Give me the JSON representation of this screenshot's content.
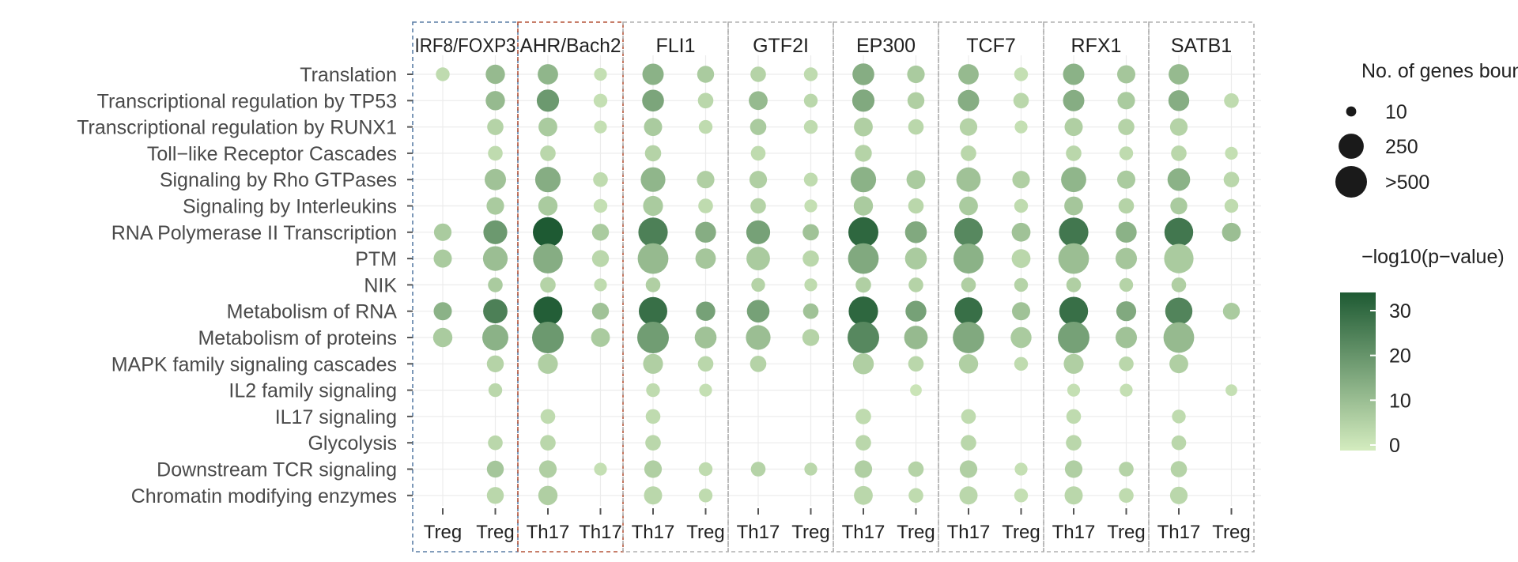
{
  "chart_data": {
    "type": "scatter",
    "categories": [
      "Translation",
      "Transcriptional regulation by TP53",
      "Transcriptional regulation by RUNX1",
      "Toll−like Receptor Cascades",
      "Signaling by Rho GTPases",
      "Signaling by Interleukins",
      "RNA Polymerase II Transcription",
      "PTM",
      "NIK",
      "Metabolism of RNA",
      "Metabolism of proteins",
      "MAPK family signaling cascades",
      "IL2 family signaling",
      "IL17 signaling",
      "Glycolysis",
      "Downstream TCR signaling",
      "Chromatin modifying enzymes"
    ],
    "groups": [
      {
        "label": "IRF8/FOXP3",
        "frame_color": "#5b7fa6"
      },
      {
        "label": "AHR/Bach2",
        "frame_color": "#b5553a"
      },
      {
        "label": "FLI1",
        "frame_color": "#b0b0b0"
      },
      {
        "label": "GTF2I",
        "frame_color": "#b0b0b0"
      },
      {
        "label": "EP300",
        "frame_color": "#b0b0b0"
      },
      {
        "label": "TCF7",
        "frame_color": "#b0b0b0"
      },
      {
        "label": "RFX1",
        "frame_color": "#b0b0b0"
      },
      {
        "label": "SATB1",
        "frame_color": "#b0b0b0"
      }
    ],
    "columns": [
      "Treg",
      "Treg",
      "Th17",
      "Th17",
      "Th17",
      "Treg",
      "Th17",
      "Treg",
      "Th17",
      "Treg",
      "Th17",
      "Treg",
      "Th17",
      "Treg",
      "Th17",
      "Treg"
    ],
    "note": "points: [category_index, column_index, genes_bound, neg_log10_p]",
    "points": [
      [
        0,
        0,
        40,
        4
      ],
      [
        0,
        1,
        120,
        12
      ],
      [
        0,
        2,
        140,
        13
      ],
      [
        0,
        3,
        30,
        3
      ],
      [
        0,
        4,
        160,
        14
      ],
      [
        0,
        5,
        80,
        8
      ],
      [
        0,
        6,
        60,
        6
      ],
      [
        0,
        7,
        40,
        4
      ],
      [
        0,
        8,
        170,
        15
      ],
      [
        0,
        9,
        90,
        8
      ],
      [
        0,
        10,
        140,
        12
      ],
      [
        0,
        11,
        40,
        3
      ],
      [
        0,
        12,
        160,
        14
      ],
      [
        0,
        13,
        100,
        9
      ],
      [
        0,
        14,
        140,
        12
      ],
      [
        1,
        1,
        120,
        12
      ],
      [
        1,
        2,
        180,
        20
      ],
      [
        1,
        3,
        40,
        3
      ],
      [
        1,
        4,
        170,
        17
      ],
      [
        1,
        5,
        60,
        5
      ],
      [
        1,
        6,
        110,
        12
      ],
      [
        1,
        7,
        40,
        5
      ],
      [
        1,
        8,
        180,
        16
      ],
      [
        1,
        9,
        80,
        7
      ],
      [
        1,
        10,
        160,
        15
      ],
      [
        1,
        11,
        60,
        5
      ],
      [
        1,
        12,
        160,
        15
      ],
      [
        1,
        13,
        90,
        8
      ],
      [
        1,
        14,
        150,
        15
      ],
      [
        1,
        15,
        50,
        4
      ],
      [
        2,
        1,
        70,
        6
      ],
      [
        2,
        2,
        110,
        8
      ],
      [
        2,
        3,
        30,
        3
      ],
      [
        2,
        4,
        100,
        8
      ],
      [
        2,
        5,
        40,
        4
      ],
      [
        2,
        6,
        70,
        8
      ],
      [
        2,
        7,
        40,
        4
      ],
      [
        2,
        8,
        110,
        7
      ],
      [
        2,
        9,
        60,
        5
      ],
      [
        2,
        10,
        90,
        6
      ],
      [
        2,
        11,
        30,
        3
      ],
      [
        2,
        12,
        100,
        7
      ],
      [
        2,
        13,
        70,
        6
      ],
      [
        2,
        14,
        90,
        6
      ],
      [
        3,
        1,
        50,
        4
      ],
      [
        3,
        2,
        60,
        5
      ],
      [
        3,
        4,
        70,
        6
      ],
      [
        3,
        6,
        50,
        4
      ],
      [
        3,
        8,
        80,
        6
      ],
      [
        3,
        10,
        60,
        5
      ],
      [
        3,
        12,
        60,
        5
      ],
      [
        3,
        13,
        40,
        4
      ],
      [
        3,
        14,
        60,
        5
      ],
      [
        3,
        15,
        30,
        3
      ],
      [
        4,
        1,
        160,
        10
      ],
      [
        4,
        2,
        260,
        15
      ],
      [
        4,
        3,
        50,
        4
      ],
      [
        4,
        4,
        240,
        13
      ],
      [
        4,
        5,
        90,
        7
      ],
      [
        4,
        6,
        90,
        7
      ],
      [
        4,
        7,
        40,
        4
      ],
      [
        4,
        8,
        260,
        14
      ],
      [
        4,
        9,
        110,
        8
      ],
      [
        4,
        10,
        230,
        10
      ],
      [
        4,
        11,
        90,
        7
      ],
      [
        4,
        12,
        250,
        13
      ],
      [
        4,
        13,
        100,
        8
      ],
      [
        4,
        14,
        190,
        14
      ],
      [
        4,
        15,
        60,
        5
      ],
      [
        5,
        1,
        90,
        8
      ],
      [
        5,
        2,
        120,
        8
      ],
      [
        5,
        3,
        40,
        3
      ],
      [
        5,
        4,
        130,
        8
      ],
      [
        5,
        5,
        50,
        4
      ],
      [
        5,
        6,
        60,
        6
      ],
      [
        5,
        7,
        30,
        3
      ],
      [
        5,
        8,
        120,
        8
      ],
      [
        5,
        9,
        60,
        5
      ],
      [
        5,
        10,
        110,
        8
      ],
      [
        5,
        11,
        40,
        4
      ],
      [
        5,
        12,
        110,
        9
      ],
      [
        5,
        13,
        60,
        6
      ],
      [
        5,
        14,
        80,
        8
      ],
      [
        5,
        15,
        40,
        4
      ],
      [
        6,
        0,
        90,
        8
      ],
      [
        6,
        1,
        220,
        20
      ],
      [
        6,
        2,
        400,
        35
      ],
      [
        6,
        3,
        80,
        8
      ],
      [
        6,
        4,
        380,
        26
      ],
      [
        6,
        5,
        150,
        15
      ],
      [
        6,
        6,
        220,
        18
      ],
      [
        6,
        7,
        70,
        10
      ],
      [
        6,
        8,
        400,
        32
      ],
      [
        6,
        9,
        170,
        16
      ],
      [
        6,
        10,
        350,
        24
      ],
      [
        6,
        11,
        110,
        10
      ],
      [
        6,
        12,
        380,
        28
      ],
      [
        6,
        13,
        150,
        14
      ],
      [
        6,
        14,
        360,
        28
      ],
      [
        6,
        15,
        110,
        11
      ],
      [
        7,
        0,
        100,
        8
      ],
      [
        7,
        1,
        240,
        11
      ],
      [
        7,
        2,
        390,
        15
      ],
      [
        7,
        3,
        80,
        5
      ],
      [
        7,
        4,
        420,
        12
      ],
      [
        7,
        5,
        140,
        9
      ],
      [
        7,
        6,
        210,
        8
      ],
      [
        7,
        7,
        70,
        5
      ],
      [
        7,
        8,
        420,
        16
      ],
      [
        7,
        9,
        170,
        8
      ],
      [
        7,
        10,
        400,
        14
      ],
      [
        7,
        11,
        110,
        5
      ],
      [
        7,
        12,
        420,
        11
      ],
      [
        7,
        13,
        160,
        9
      ],
      [
        7,
        14,
        380,
        8
      ],
      [
        8,
        1,
        50,
        8
      ],
      [
        8,
        2,
        60,
        6
      ],
      [
        8,
        3,
        30,
        4
      ],
      [
        8,
        4,
        50,
        7
      ],
      [
        8,
        6,
        40,
        6
      ],
      [
        8,
        7,
        30,
        4
      ],
      [
        8,
        8,
        60,
        7
      ],
      [
        8,
        9,
        50,
        6
      ],
      [
        8,
        10,
        50,
        7
      ],
      [
        8,
        11,
        40,
        6
      ],
      [
        8,
        12,
        50,
        7
      ],
      [
        8,
        13,
        40,
        6
      ],
      [
        8,
        14,
        50,
        7
      ],
      [
        9,
        0,
        100,
        14
      ],
      [
        9,
        1,
        230,
        26
      ],
      [
        9,
        2,
        370,
        34
      ],
      [
        9,
        3,
        80,
        10
      ],
      [
        9,
        4,
        350,
        30
      ],
      [
        9,
        5,
        120,
        18
      ],
      [
        9,
        6,
        190,
        18
      ],
      [
        9,
        7,
        60,
        10
      ],
      [
        9,
        8,
        380,
        32
      ],
      [
        9,
        9,
        150,
        18
      ],
      [
        9,
        10,
        330,
        30
      ],
      [
        9,
        11,
        100,
        10
      ],
      [
        9,
        12,
        360,
        30
      ],
      [
        9,
        13,
        130,
        16
      ],
      [
        9,
        14,
        310,
        25
      ],
      [
        9,
        15,
        80,
        8
      ],
      [
        10,
        0,
        120,
        8
      ],
      [
        10,
        1,
        280,
        14
      ],
      [
        10,
        2,
        490,
        20
      ],
      [
        10,
        3,
        110,
        8
      ],
      [
        10,
        4,
        500,
        19
      ],
      [
        10,
        5,
        170,
        10
      ],
      [
        10,
        6,
        240,
        11
      ],
      [
        10,
        7,
        80,
        6
      ],
      [
        10,
        8,
        520,
        24
      ],
      [
        10,
        9,
        210,
        12
      ],
      [
        10,
        10,
        450,
        16
      ],
      [
        10,
        11,
        150,
        8
      ],
      [
        10,
        12,
        480,
        18
      ],
      [
        10,
        13,
        160,
        10
      ],
      [
        10,
        14,
        420,
        12
      ],
      [
        11,
        1,
        80,
        6
      ],
      [
        11,
        2,
        130,
        7
      ],
      [
        11,
        4,
        130,
        7
      ],
      [
        11,
        5,
        60,
        5
      ],
      [
        11,
        6,
        70,
        6
      ],
      [
        11,
        8,
        150,
        7
      ],
      [
        11,
        9,
        60,
        5
      ],
      [
        11,
        10,
        120,
        7
      ],
      [
        11,
        11,
        40,
        4
      ],
      [
        11,
        12,
        130,
        7
      ],
      [
        11,
        13,
        50,
        5
      ],
      [
        11,
        14,
        110,
        7
      ],
      [
        12,
        1,
        40,
        5
      ],
      [
        12,
        4,
        40,
        4
      ],
      [
        12,
        5,
        30,
        3
      ],
      [
        12,
        9,
        20,
        2
      ],
      [
        12,
        12,
        30,
        3
      ],
      [
        12,
        13,
        30,
        3
      ],
      [
        12,
        15,
        20,
        3
      ],
      [
        13,
        2,
        50,
        4
      ],
      [
        13,
        4,
        50,
        4
      ],
      [
        13,
        8,
        60,
        4
      ],
      [
        13,
        10,
        50,
        4
      ],
      [
        13,
        12,
        50,
        4
      ],
      [
        13,
        14,
        40,
        4
      ],
      [
        14,
        1,
        50,
        5
      ],
      [
        14,
        2,
        60,
        5
      ],
      [
        14,
        4,
        60,
        5
      ],
      [
        14,
        8,
        60,
        5
      ],
      [
        14,
        10,
        60,
        5
      ],
      [
        14,
        12,
        60,
        5
      ],
      [
        14,
        14,
        50,
        5
      ],
      [
        15,
        1,
        80,
        9
      ],
      [
        15,
        2,
        90,
        7
      ],
      [
        15,
        3,
        30,
        3
      ],
      [
        15,
        4,
        90,
        7
      ],
      [
        15,
        5,
        40,
        4
      ],
      [
        15,
        6,
        50,
        6
      ],
      [
        15,
        7,
        30,
        5
      ],
      [
        15,
        8,
        90,
        7
      ],
      [
        15,
        9,
        60,
        6
      ],
      [
        15,
        10,
        90,
        7
      ],
      [
        15,
        11,
        30,
        3
      ],
      [
        15,
        12,
        90,
        7
      ],
      [
        15,
        13,
        50,
        6
      ],
      [
        15,
        14,
        70,
        6
      ],
      [
        16,
        1,
        80,
        5
      ],
      [
        16,
        2,
        120,
        7
      ],
      [
        16,
        4,
        100,
        5
      ],
      [
        16,
        5,
        40,
        4
      ],
      [
        16,
        8,
        110,
        5
      ],
      [
        16,
        9,
        50,
        4
      ],
      [
        16,
        10,
        100,
        5
      ],
      [
        16,
        11,
        40,
        3
      ],
      [
        16,
        12,
        100,
        5
      ],
      [
        16,
        13,
        50,
        4
      ],
      [
        16,
        14,
        90,
        5
      ]
    ],
    "size_legend": {
      "title": "No. of genes bound",
      "labels": [
        "10",
        "250",
        ">500"
      ],
      "values": [
        10,
        250,
        500
      ]
    },
    "color_legend": {
      "title": "−log10(p−value)",
      "ticks": [
        "30",
        "20",
        "10",
        "0"
      ],
      "min": 0,
      "max": 35,
      "low_color": "#d4ecbf",
      "high_color": "#1e5a33"
    }
  }
}
